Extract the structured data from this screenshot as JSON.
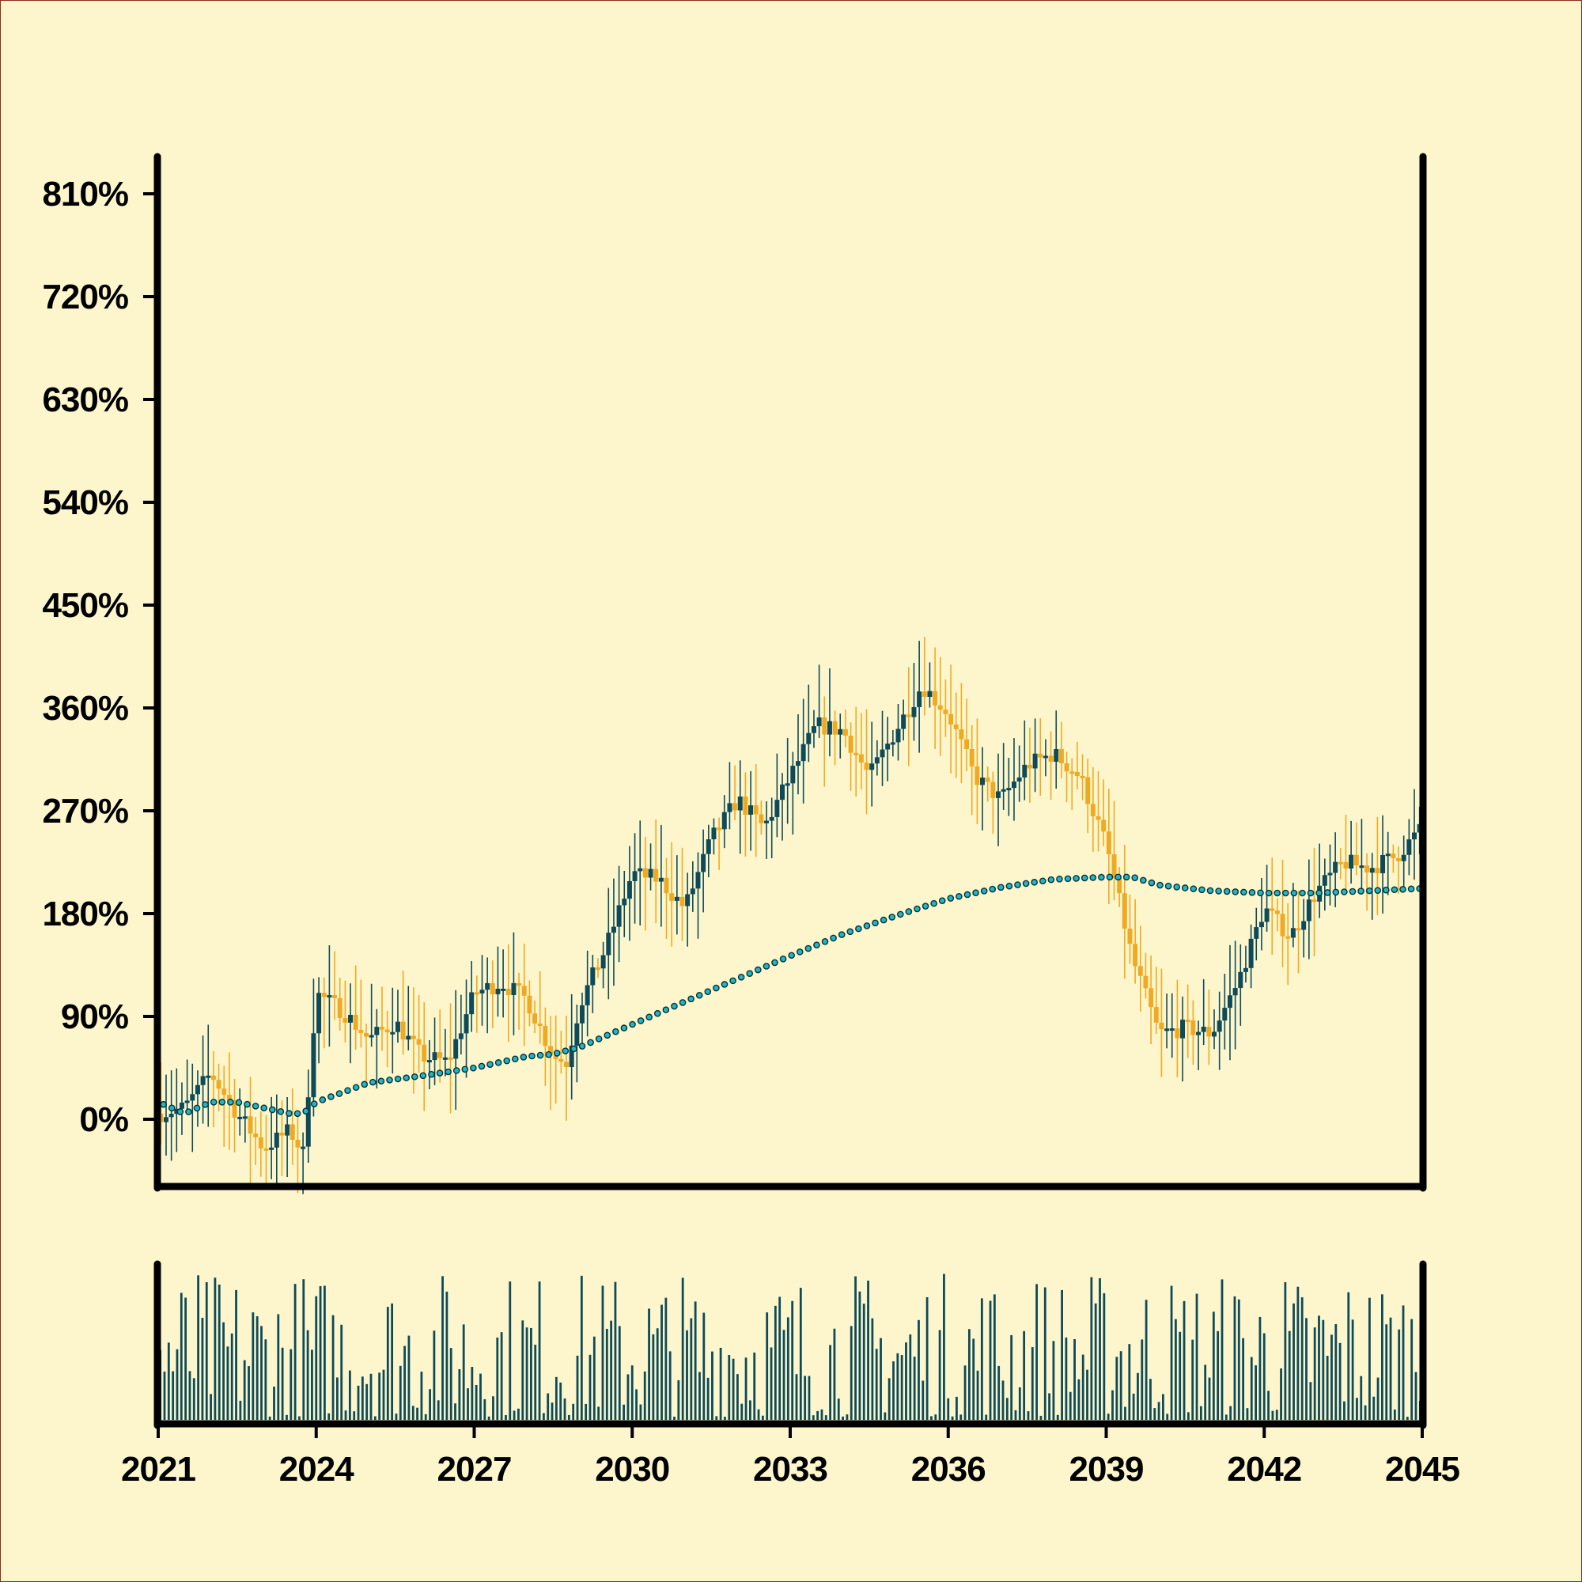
{
  "chart_data": {
    "type": "candlestick",
    "title": "",
    "xlabel": "",
    "ylabel": "",
    "x_tick_labels": [
      "2021",
      "2024",
      "2027",
      "2030",
      "2033",
      "2036",
      "2039",
      "2042",
      "2045"
    ],
    "x_range": [
      2021.0,
      2045.0
    ],
    "y_tick_labels": [
      "0%",
      "90%",
      "180%",
      "270%",
      "360%",
      "450%",
      "540%",
      "630%",
      "720%",
      "810%"
    ],
    "y_range": [
      -60,
      870
    ],
    "grid": false,
    "legend": "none",
    "colors": {
      "background": "#fdf6cc",
      "up_candle": "#0d4a5a",
      "down_candle": "#f0aa22",
      "moving_average_marker": "#1eb8c4",
      "volume_bar": "#0d4a5a",
      "axis": "#000000"
    },
    "price_path": {
      "x": [
        2021.0,
        2021.5,
        2022.0,
        2022.5,
        2023.0,
        2023.5,
        2023.75,
        2024.0,
        2024.5,
        2025.0,
        2025.5,
        2026.0,
        2026.5,
        2027.0,
        2027.5,
        2028.0,
        2028.5,
        2028.75,
        2029.0,
        2029.5,
        2030.0,
        2030.5,
        2031.0,
        2031.5,
        2032.0,
        2032.5,
        2033.0,
        2033.5,
        2034.0,
        2034.5,
        2035.0,
        2035.5,
        2036.0,
        2036.5,
        2037.0,
        2037.5,
        2038.0,
        2038.5,
        2039.0,
        2039.5,
        2040.0,
        2040.5,
        2041.0,
        2041.5,
        2042.0,
        2042.5,
        2043.0,
        2043.5,
        2044.0,
        2044.5,
        2045.0
      ],
      "close_pct": [
        5,
        10,
        40,
        5,
        -25,
        -10,
        -30,
        110,
        95,
        70,
        85,
        55,
        50,
        110,
        120,
        105,
        55,
        50,
        100,
        150,
        215,
        210,
        185,
        245,
        280,
        255,
        300,
        345,
        340,
        300,
        340,
        380,
        355,
        300,
        280,
        310,
        320,
        300,
        240,
        140,
        75,
        80,
        75,
        120,
        185,
        160,
        200,
        225,
        220,
        230,
        255
      ]
    },
    "moving_average_pct": {
      "x": [
        2021.0,
        2021.5,
        2022.0,
        2022.5,
        2023.0,
        2023.5,
        2023.75,
        2024.0,
        2025.0,
        2026.0,
        2027.0,
        2028.0,
        2028.5,
        2029.0,
        2030.0,
        2031.0,
        2032.0,
        2033.0,
        2034.0,
        2035.0,
        2036.0,
        2037.0,
        2038.0,
        2039.0,
        2039.5,
        2040.0,
        2041.0,
        2042.0,
        2043.0,
        2044.0,
        2045.0
      ],
      "values": [
        15,
        5,
        15,
        15,
        10,
        5,
        5,
        15,
        32,
        38,
        45,
        55,
        57,
        63,
        83,
        103,
        123,
        143,
        162,
        178,
        193,
        203,
        210,
        212,
        212,
        205,
        200,
        198,
        198,
        200,
        202
      ]
    },
    "volume": {
      "relative_scale": [
        0,
        1
      ],
      "typical_range": [
        0.02,
        1.0
      ]
    }
  }
}
